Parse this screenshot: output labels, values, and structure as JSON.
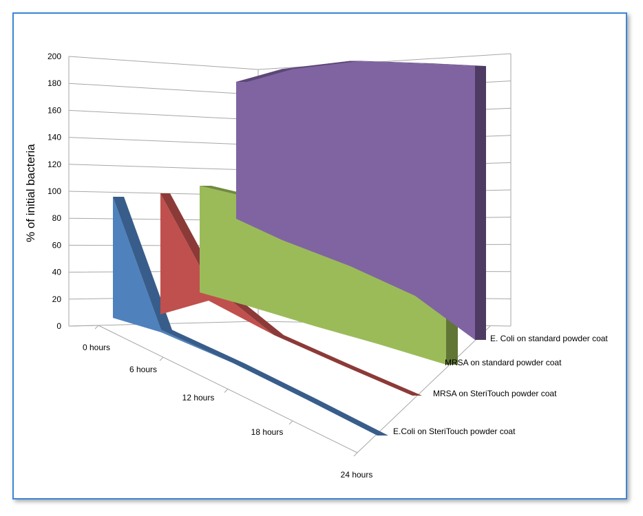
{
  "chart_data": {
    "type": "area",
    "title": "",
    "ylabel": "% of initial bacteria",
    "xlabel": "",
    "categories": [
      "0 hours",
      "6 hours",
      "12 hours",
      "18 hours",
      "24 hours"
    ],
    "ylim": [
      0,
      200
    ],
    "y_ticks": [
      0,
      20,
      40,
      60,
      80,
      100,
      120,
      140,
      160,
      180,
      200
    ],
    "grid": true,
    "series": [
      {
        "name": "E.Coli on SteriTouch powder coat",
        "values": [
          100,
          2,
          0,
          0,
          0
        ]
      },
      {
        "name": "MRSA on SteriTouch powder coat",
        "values": [
          100,
          15,
          0,
          0,
          0
        ]
      },
      {
        "name": "MRSA on standard powder coat",
        "values": [
          100,
          102,
          100,
          95,
          90
        ]
      },
      {
        "name": "E. Coli on standard powder coat",
        "values": [
          100,
          125,
          150,
          170,
          200
        ]
      }
    ],
    "colors": {
      "series_front": [
        "#4f81bd",
        "#c0504d",
        "#9bbb59",
        "#8064a2"
      ],
      "series_top": [
        "#385d8a",
        "#8c3a38",
        "#71893f",
        "#5c4776"
      ],
      "series_side": [
        "#2e4d72",
        "#772f2d",
        "#617535",
        "#4d3b63"
      ],
      "frame_border": "#3a86d8",
      "grid": "#a6a6a6"
    }
  }
}
